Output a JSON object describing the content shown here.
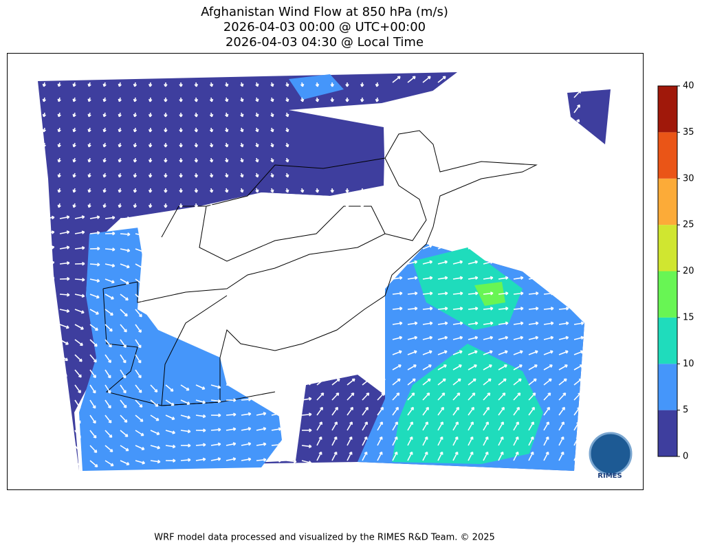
{
  "title": [
    "Afghanistan Wind Flow at 850 hPa (m/s)",
    "2026-04-03 00:00 @ UTC+00:00",
    "2026-04-03 04:30 @ Local Time"
  ],
  "colorbar": {
    "lim": [
      0,
      40
    ],
    "ticks": [
      0,
      5,
      10,
      15,
      20,
      25,
      30,
      35,
      40
    ],
    "colors": [
      "#3e3e9e",
      "#4596fa",
      "#1fdcbc",
      "#68f554",
      "#d0e630",
      "#fcab38",
      "#ea5517",
      "#a0180a"
    ]
  },
  "logo": "RIMES",
  "footer": "WRF model data processed and visualized by the RIMES R&D Team. © 2025"
}
